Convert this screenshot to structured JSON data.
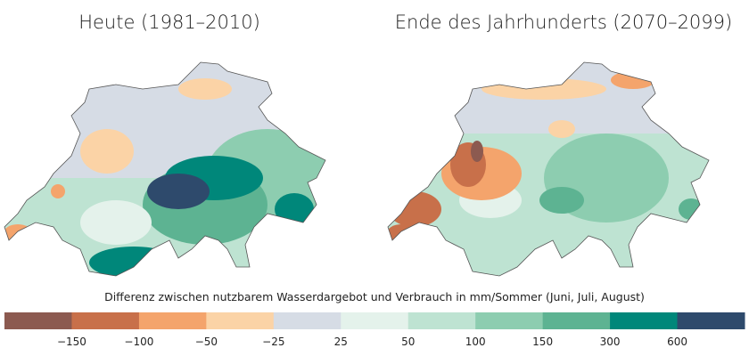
{
  "maps": [
    {
      "title": "Heute (1981–2010)"
    },
    {
      "title": "Ende des Jahrhunderts (2070–2099)"
    }
  ],
  "legend": {
    "title": "Differenz zwischen nutzbarem Wasserdargebot und Verbrauch in mm/Sommer (Juni, Juli, August)",
    "colors": [
      "#8c5a50",
      "#c8704a",
      "#f4a46c",
      "#fbd3a6",
      "#d6dce5",
      "#e4f2eb",
      "#bee3d2",
      "#8dcdb0",
      "#5db392",
      "#00877a",
      "#2e4a6c"
    ],
    "ticks": [
      {
        "value": -150,
        "label": "−150"
      },
      {
        "value": -100,
        "label": "−100"
      },
      {
        "value": -50,
        "label": "−50"
      },
      {
        "value": -25,
        "label": "−25"
      },
      25,
      50,
      100,
      150,
      300,
      600
    ]
  }
}
